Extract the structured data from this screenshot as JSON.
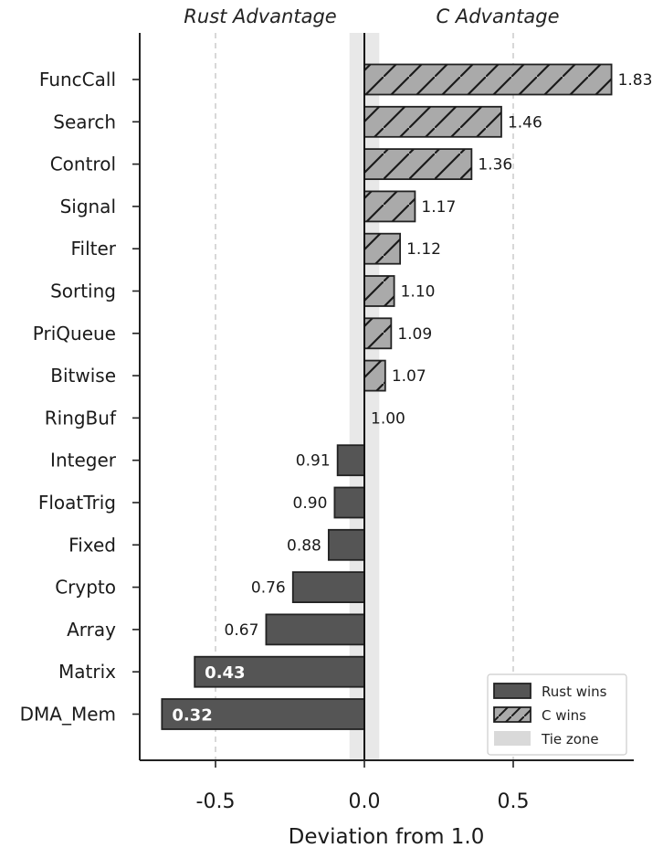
{
  "chart_data": {
    "type": "bar",
    "orientation": "horizontal",
    "categories": [
      "FuncCall",
      "Search",
      "Control",
      "Signal",
      "Filter",
      "Sorting",
      "PriQueue",
      "Bitwise",
      "RingBuf",
      "Integer",
      "FloatTrig",
      "Fixed",
      "Crypto",
      "Array",
      "Matrix",
      "DMA_Mem"
    ],
    "values": [
      1.83,
      1.46,
      1.36,
      1.17,
      1.12,
      1.1,
      1.09,
      1.07,
      1.0,
      0.91,
      0.9,
      0.88,
      0.76,
      0.67,
      0.43,
      0.32
    ],
    "value_labels": [
      "1.83",
      "1.46",
      "1.36",
      "1.17",
      "1.12",
      "1.10",
      "1.09",
      "1.07",
      "1.00",
      "0.91",
      "0.90",
      "0.88",
      "0.76",
      "0.67",
      "0.43",
      "0.32"
    ],
    "baseline": 1.0,
    "xlabel": "Deviation from 1.0",
    "xlim": [
      -0.75,
      0.9
    ],
    "xticks": [
      -0.5,
      0.0,
      0.5
    ],
    "xtick_labels": [
      "-0.5",
      "0.0",
      "0.5"
    ],
    "tie_zone": [
      -0.05,
      0.05
    ],
    "region_labels": {
      "left": "Rust Advantage",
      "right": "C Advantage"
    },
    "legend": {
      "position": "lower-right",
      "entries": [
        {
          "label": "Rust wins",
          "style": "solid"
        },
        {
          "label": "C wins",
          "style": "hatched"
        },
        {
          "label": "Tie zone",
          "style": "shade"
        }
      ]
    },
    "colors": {
      "rust": "#555555",
      "c": "#aaaaaa",
      "tie": "#d9d9d9",
      "edge": "#222222"
    },
    "grid": "dashed vertical at -0.5 and 0.5"
  }
}
